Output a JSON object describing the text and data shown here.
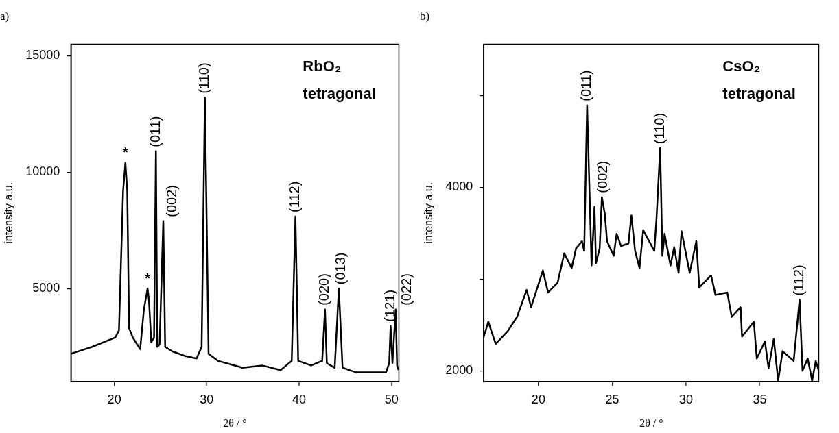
{
  "chart_data": [
    {
      "type": "line",
      "title": "a)",
      "xlabel": "2θ / °",
      "ylabel": "intensity a.u.",
      "xlim": [
        15.3,
        50.8
      ],
      "ylim": [
        1000,
        15500
      ],
      "xticks": [
        20,
        30,
        40,
        50
      ],
      "yticks": [
        5000,
        10000,
        15000
      ],
      "grid": false,
      "legend": false,
      "marker": "none",
      "line_style": "solid",
      "annotations": [
        "RbO₂",
        "tetragonal",
        {
          "text": "*",
          "x": 21.2,
          "y": 10400
        },
        {
          "text": "*",
          "x": 23.6,
          "y": 5000
        },
        {
          "text": "(011)",
          "x": 24.5,
          "y": 10900
        },
        {
          "text": "(002)",
          "x": 25.3,
          "y": 7900
        },
        {
          "text": "(110)",
          "x": 29.8,
          "y": 13200
        },
        {
          "text": "(112)",
          "x": 39.6,
          "y": 8100
        },
        {
          "text": "(020)",
          "x": 42.8,
          "y": 4100
        },
        {
          "text": "(013)",
          "x": 44.3,
          "y": 5000
        },
        {
          "text": "(121)",
          "x": 49.9,
          "y": 3400
        },
        {
          "text": "(022)",
          "x": 50.45,
          "y": 4100
        }
      ],
      "series": [
        {
          "color": "#000000",
          "x": [
            15.3,
            17.6,
            20.1,
            20.5,
            20.95,
            21.2,
            21.4,
            21.6,
            22.0,
            22.8,
            23.2,
            23.6,
            23.75,
            24.0,
            24.3,
            24.5,
            24.65,
            24.9,
            25.3,
            25.5,
            26.3,
            27.7,
            28.9,
            29.45,
            29.8,
            30.2,
            31.2,
            33.9,
            36.0,
            38.0,
            39.2,
            39.6,
            39.9,
            41.3,
            42.5,
            42.8,
            43.0,
            43.85,
            44.3,
            44.7,
            46.2,
            49.4,
            49.75,
            49.9,
            50.1,
            50.45,
            50.6,
            50.75
          ],
          "values": [
            2200,
            2500,
            2900,
            3200,
            9200,
            10400,
            9200,
            3300,
            2900,
            2400,
            4100,
            5000,
            4500,
            2700,
            2900,
            10900,
            2500,
            2600,
            7900,
            2500,
            2300,
            2100,
            2000,
            2500,
            13200,
            2200,
            1900,
            1600,
            1700,
            1500,
            1900,
            8100,
            1900,
            1700,
            1900,
            4100,
            1800,
            1600,
            5000,
            1600,
            1400,
            1400,
            1800,
            3400,
            1800,
            4100,
            1700,
            1500
          ]
        }
      ]
    },
    {
      "type": "line",
      "title": "b)",
      "xlabel": "2θ / °",
      "ylabel": "intensity a.u.",
      "xlim": [
        16.3,
        39.0
      ],
      "ylim": [
        1880,
        5560
      ],
      "xticks": [
        20,
        25,
        30,
        35
      ],
      "yticks": [
        2000,
        {
          "value": 3000,
          "label": null
        },
        4000,
        {
          "value": 5000,
          "label": null
        }
      ],
      "grid": false,
      "legend": false,
      "marker": "none",
      "line_style": "solid",
      "annotations": [
        "CsO₂",
        "tetragonal",
        {
          "text": "(011)",
          "x": 23.3,
          "y": 4893
        },
        {
          "text": "(002)",
          "x": 24.3,
          "y": 3893
        },
        {
          "text": "(110)",
          "x": 28.25,
          "y": 4427
        },
        {
          "text": "(112)",
          "x": 37.7,
          "y": 2773
        }
      ],
      "series": [
        {
          "color": "#000000",
          "x": [
            16.3,
            16.6,
            17.1,
            17.9,
            18.55,
            19.2,
            19.5,
            20.3,
            20.65,
            21.3,
            21.75,
            22.25,
            22.55,
            22.95,
            23.1,
            23.3,
            23.6,
            23.8,
            23.9,
            24.15,
            24.3,
            24.5,
            24.65,
            25.1,
            25.3,
            25.6,
            26.1,
            26.3,
            26.55,
            26.85,
            27.1,
            27.85,
            28.0,
            28.25,
            28.4,
            28.55,
            28.95,
            29.2,
            29.5,
            29.7,
            30.25,
            30.7,
            30.9,
            31.7,
            32.0,
            32.8,
            33.1,
            33.7,
            33.8,
            34.6,
            34.8,
            35.35,
            35.6,
            35.95,
            36.25,
            36.55,
            37.3,
            37.7,
            37.9,
            38.25,
            38.55,
            38.8,
            39.0
          ],
          "values": [
            2373,
            2533,
            2293,
            2427,
            2587,
            2880,
            2693,
            3093,
            2853,
            2960,
            3280,
            3120,
            3333,
            3413,
            3307,
            4893,
            3147,
            3787,
            3173,
            3333,
            3893,
            3707,
            3413,
            3253,
            3493,
            3360,
            3387,
            3693,
            3307,
            3120,
            3533,
            3307,
            3653,
            4427,
            3253,
            3493,
            3147,
            3347,
            3067,
            3520,
            3067,
            3413,
            2907,
            3040,
            2827,
            2853,
            2587,
            2693,
            2373,
            2533,
            2133,
            2320,
            2027,
            2347,
            1893,
            2213,
            2107,
            2773,
            2000,
            2133,
            1893,
            2107,
            2000
          ]
        }
      ]
    }
  ]
}
